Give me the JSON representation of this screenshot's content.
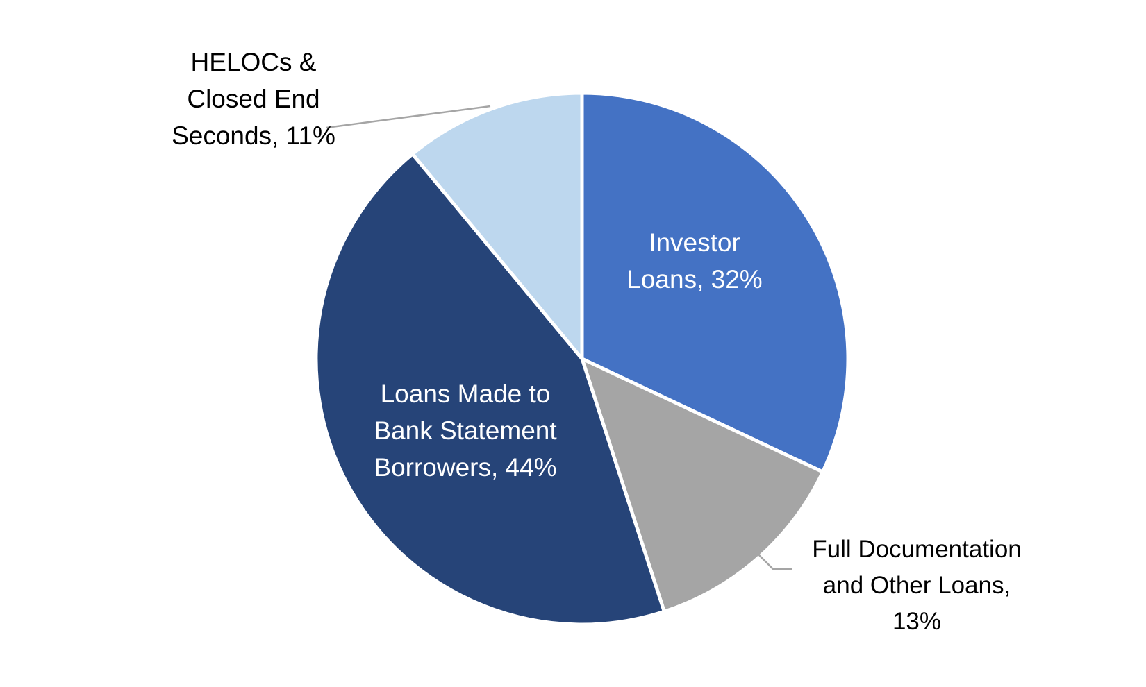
{
  "chart_data": {
    "type": "pie",
    "title": "",
    "categories": [
      "Investor Loans",
      "Full Documentation and Other Loans",
      "Loans Made to Bank Statement Borrowers",
      "HELOCs & Closed End Seconds"
    ],
    "values": [
      32,
      13,
      44,
      11
    ],
    "unit": "%",
    "colors": [
      "#4472C4",
      "#A5A5A5",
      "#264478",
      "#BDD7EE"
    ],
    "start_angle_deg": 0,
    "direction": "clockwise",
    "legend": "none",
    "data_labels": [
      {
        "lines": [
          "Investor",
          "Loans, 32%"
        ],
        "position": "inside"
      },
      {
        "lines": [
          "Full Documentation",
          "and Other Loans,",
          "13%"
        ],
        "position": "outside"
      },
      {
        "lines": [
          "Loans Made to",
          "Bank Statement",
          "Borrowers, 44%"
        ],
        "position": "inside"
      },
      {
        "lines": [
          "HELOCs &",
          "Closed End",
          "Seconds, 11%"
        ],
        "position": "outside"
      }
    ]
  }
}
